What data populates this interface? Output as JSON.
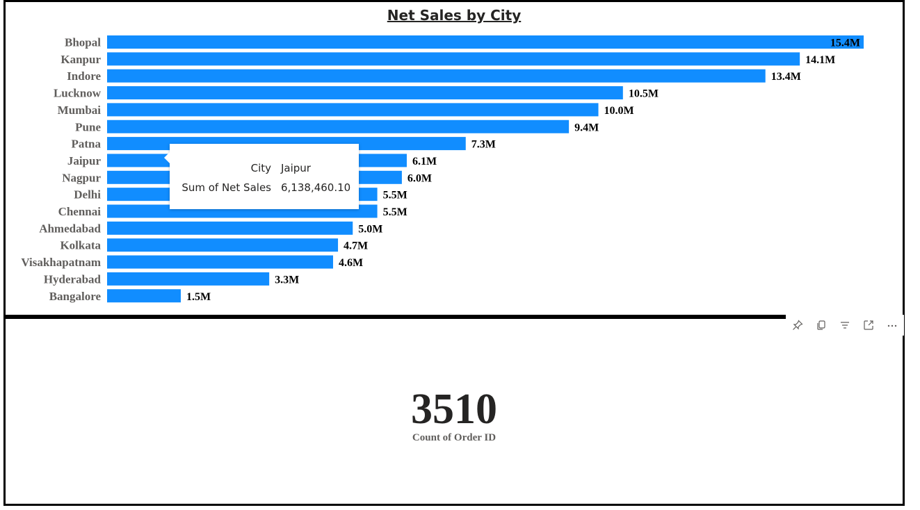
{
  "chart_data": {
    "type": "bar",
    "orientation": "horizontal",
    "title": "Net Sales by City",
    "categories": [
      "Bhopal",
      "Kanpur",
      "Indore",
      "Lucknow",
      "Mumbai",
      "Pune",
      "Patna",
      "Jaipur",
      "Nagpur",
      "Delhi",
      "Chennai",
      "Ahmedabad",
      "Kolkata",
      "Visakhapatnam",
      "Hyderabad",
      "Bangalore"
    ],
    "values": [
      15.4,
      14.1,
      13.4,
      10.5,
      10.0,
      9.4,
      7.3,
      6.1,
      6.0,
      5.5,
      5.5,
      5.0,
      4.7,
      4.6,
      3.3,
      1.5
    ],
    "data_labels": [
      "15.4M",
      "14.1M",
      "13.4M",
      "10.5M",
      "10.0M",
      "9.4M",
      "7.3M",
      "6.1M",
      "6.0M",
      "5.5M",
      "5.5M",
      "5.0M",
      "4.7M",
      "4.6M",
      "3.3M",
      "1.5M"
    ],
    "value_unit": "M",
    "xlim": [
      0,
      15.4
    ],
    "bar_color": "#118dff",
    "grid": false,
    "legend": "none"
  },
  "tooltip": {
    "rows": [
      {
        "key": "City",
        "value": "Jaipur"
      },
      {
        "key": "Sum of Net Sales",
        "value": "6,138,460.10"
      }
    ]
  },
  "card": {
    "value": "3510",
    "label": "Count of Order ID"
  },
  "visual_header": {
    "icons": [
      "pin-icon",
      "copy-icon",
      "filter-icon",
      "focus-mode-icon",
      "more-options-icon"
    ]
  }
}
